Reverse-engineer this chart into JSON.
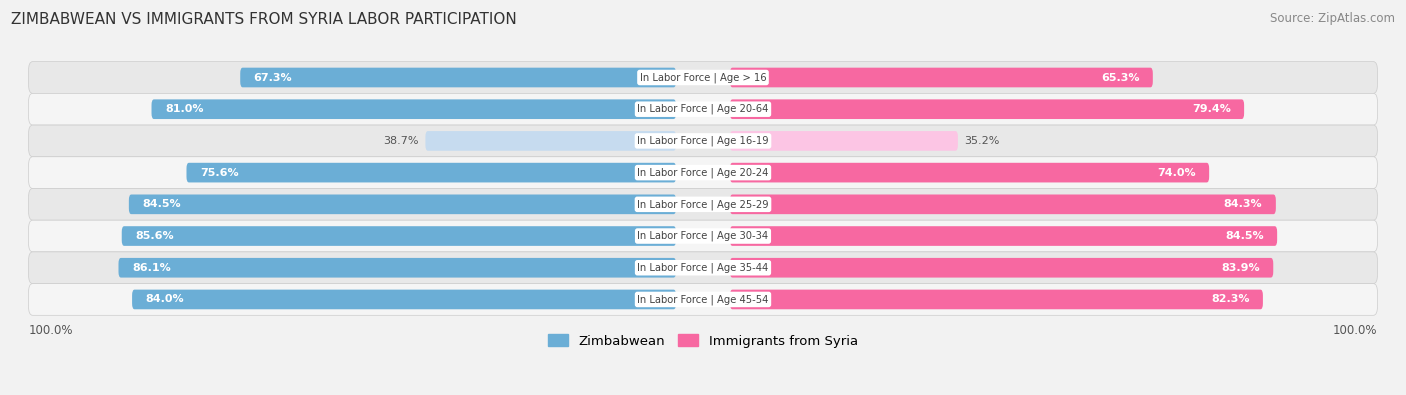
{
  "title": "ZIMBABWEAN VS IMMIGRANTS FROM SYRIA LABOR PARTICIPATION",
  "source": "Source: ZipAtlas.com",
  "categories": [
    "In Labor Force | Age > 16",
    "In Labor Force | Age 20-64",
    "In Labor Force | Age 16-19",
    "In Labor Force | Age 20-24",
    "In Labor Force | Age 25-29",
    "In Labor Force | Age 30-34",
    "In Labor Force | Age 35-44",
    "In Labor Force | Age 45-54"
  ],
  "zimbabwean_values": [
    67.3,
    81.0,
    38.7,
    75.6,
    84.5,
    85.6,
    86.1,
    84.0
  ],
  "syria_values": [
    65.3,
    79.4,
    35.2,
    74.0,
    84.3,
    84.5,
    83.9,
    82.3
  ],
  "zimbabwean_color": "#6BAED6",
  "zimbabwean_color_light": "#C6DBEF",
  "syria_color": "#F768A1",
  "syria_color_light": "#FCC5E4",
  "background_color": "#f2f2f2",
  "row_bg_even": "#e8e8e8",
  "row_bg_odd": "#f5f5f5",
  "legend_labels": [
    "Zimbabwean",
    "Immigrants from Syria"
  ],
  "axis_label": "100.0%"
}
